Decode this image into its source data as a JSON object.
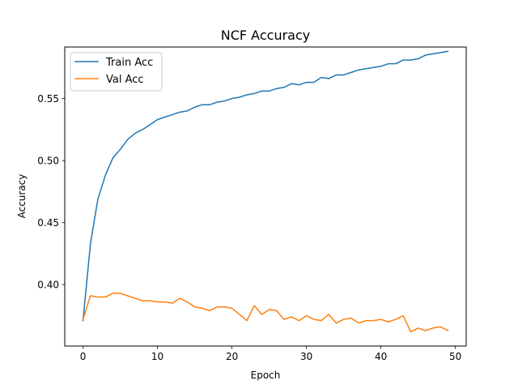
{
  "chart_data": {
    "type": "line",
    "title": "NCF Accuracy",
    "xlabel": "Epoch",
    "ylabel": "Accuracy",
    "xlim": [
      -2.45,
      51.45
    ],
    "ylim": [
      0.3505,
      0.5915
    ],
    "xticks": [
      0,
      10,
      20,
      30,
      40,
      50
    ],
    "xtick_labels": [
      "0",
      "10",
      "20",
      "30",
      "40",
      "50"
    ],
    "yticks": [
      0.4,
      0.45,
      0.5,
      0.55
    ],
    "ytick_labels": [
      "0.40",
      "0.45",
      "0.50",
      "0.55"
    ],
    "grid": false,
    "legend_position": "top-left",
    "x": [
      0,
      1,
      2,
      3,
      4,
      5,
      6,
      7,
      8,
      9,
      10,
      11,
      12,
      13,
      14,
      15,
      16,
      17,
      18,
      19,
      20,
      21,
      22,
      23,
      24,
      25,
      26,
      27,
      28,
      29,
      30,
      31,
      32,
      33,
      34,
      35,
      36,
      37,
      38,
      39,
      40,
      41,
      42,
      43,
      44,
      45,
      46,
      47,
      48,
      49
    ],
    "series": [
      {
        "name": "Train Acc",
        "color": "#1f77b4",
        "values": [
          0.371,
          0.433,
          0.469,
          0.488,
          0.502,
          0.509,
          0.517,
          0.522,
          0.525,
          0.529,
          0.533,
          0.535,
          0.537,
          0.539,
          0.54,
          0.543,
          0.545,
          0.545,
          0.547,
          0.548,
          0.55,
          0.551,
          0.553,
          0.554,
          0.556,
          0.556,
          0.558,
          0.559,
          0.562,
          0.561,
          0.563,
          0.563,
          0.567,
          0.566,
          0.569,
          0.569,
          0.571,
          0.573,
          0.574,
          0.575,
          0.576,
          0.578,
          0.578,
          0.581,
          0.581,
          0.582,
          0.585,
          0.586,
          0.587,
          0.588
        ]
      },
      {
        "name": "Val Acc",
        "color": "#ff7f0e",
        "values": [
          0.372,
          0.391,
          0.39,
          0.39,
          0.393,
          0.393,
          0.391,
          0.389,
          0.387,
          0.387,
          0.386,
          0.386,
          0.385,
          0.389,
          0.386,
          0.382,
          0.381,
          0.379,
          0.382,
          0.382,
          0.381,
          0.376,
          0.371,
          0.383,
          0.376,
          0.38,
          0.379,
          0.372,
          0.374,
          0.371,
          0.375,
          0.372,
          0.371,
          0.376,
          0.369,
          0.372,
          0.373,
          0.369,
          0.371,
          0.371,
          0.372,
          0.37,
          0.372,
          0.375,
          0.362,
          0.365,
          0.363,
          0.365,
          0.366,
          0.363
        ]
      }
    ]
  }
}
